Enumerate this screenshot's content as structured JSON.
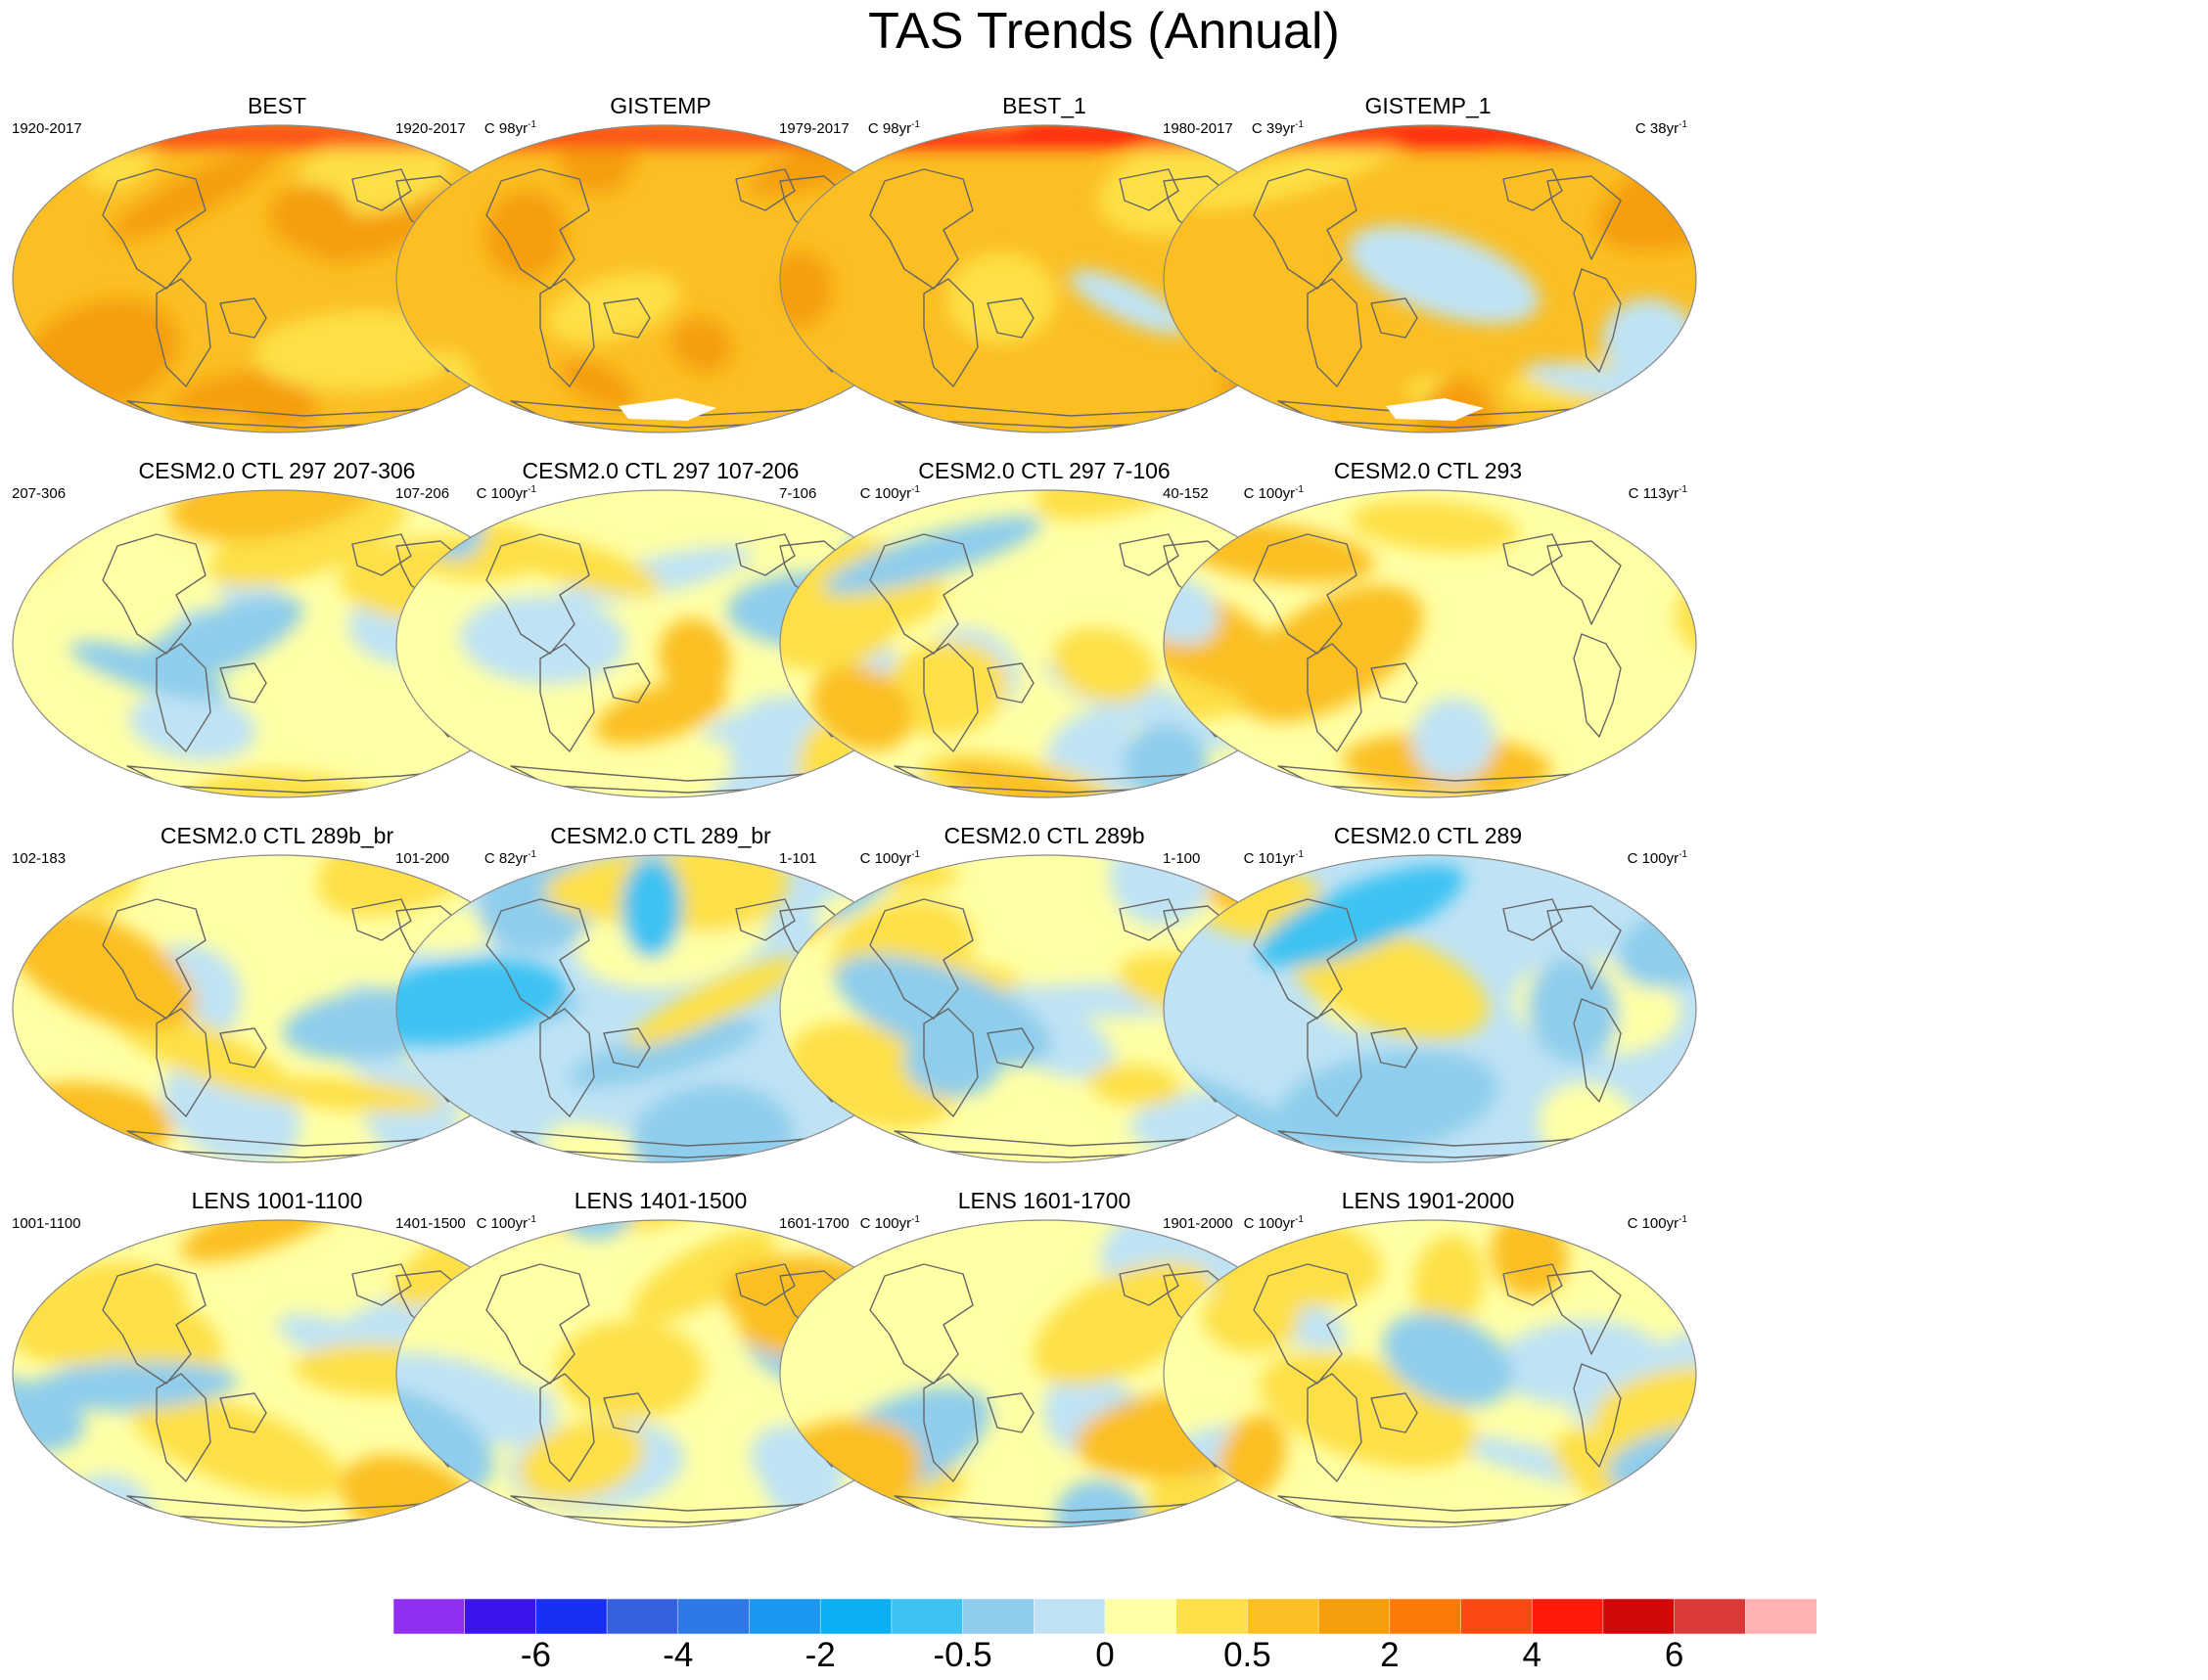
{
  "title": "TAS Trends (Annual)",
  "units_prefix": "C ",
  "units_suffix": "yr",
  "units_exponent": "-1",
  "panels": [
    {
      "title": "BEST",
      "years": "1920-2017",
      "n": "98",
      "regime": "obs_hot"
    },
    {
      "title": "GISTEMP",
      "years": "1920-2017",
      "n": "98",
      "regime": "obs_hot"
    },
    {
      "title": "BEST_1",
      "years": "1979-2017",
      "n": "39",
      "regime": "obs_recent"
    },
    {
      "title": "GISTEMP_1",
      "years": "1980-2017",
      "n": "38",
      "regime": "obs_recent"
    },
    {
      "title": "CESM2.0 CTL 297 207-306",
      "years": "207-306",
      "n": "100",
      "regime": "control"
    },
    {
      "title": "CESM2.0 CTL 297 107-206",
      "years": "107-206",
      "n": "100",
      "regime": "control"
    },
    {
      "title": "CESM2.0 CTL 297 7-106",
      "years": "7-106",
      "n": "100",
      "regime": "control"
    },
    {
      "title": "CESM2.0 CTL 293",
      "years": "40-152",
      "n": "113",
      "regime": "control_warm"
    },
    {
      "title": "CESM2.0 CTL 289b_br",
      "years": "102-183",
      "n": "82",
      "regime": "control"
    },
    {
      "title": "CESM2.0 CTL 289_br",
      "years": "101-200",
      "n": "100",
      "regime": "control_cool"
    },
    {
      "title": "CESM2.0 CTL 289b",
      "years": "1-101",
      "n": "101",
      "regime": "control"
    },
    {
      "title": "CESM2.0 CTL 289",
      "years": "1-100",
      "n": "100",
      "regime": "control_cool"
    },
    {
      "title": "LENS 1001-1100",
      "years": "1001-1100",
      "n": "100",
      "regime": "control"
    },
    {
      "title": "LENS 1401-1500",
      "years": "1401-1500",
      "n": "100",
      "regime": "control"
    },
    {
      "title": "LENS 1601-1700",
      "years": "1601-1700",
      "n": "100",
      "regime": "control"
    },
    {
      "title": "LENS 1901-2000",
      "years": "1901-2000",
      "n": "100",
      "regime": "control"
    }
  ],
  "colorbar": {
    "colors": [
      "#8f2ff0",
      "#3a14ea",
      "#1a2ff5",
      "#3561df",
      "#2f78e8",
      "#1b98f0",
      "#0bb0f2",
      "#3dc2f2",
      "#8fcdec",
      "#bfe3f5",
      "#ffffa6",
      "#fde047",
      "#fbbf24",
      "#f59e0b",
      "#fb7a0a",
      "#fb4a12",
      "#ff1a0c",
      "#d10808",
      "#dc3a3a",
      "#ffb3b3"
    ],
    "labels": [
      "-6",
      "-4",
      "-2",
      "-0.5",
      "0",
      "0.5",
      "2",
      "4",
      "6"
    ],
    "label_boundaries": [
      2,
      4,
      6,
      8,
      10,
      12,
      14,
      16,
      18
    ]
  }
}
